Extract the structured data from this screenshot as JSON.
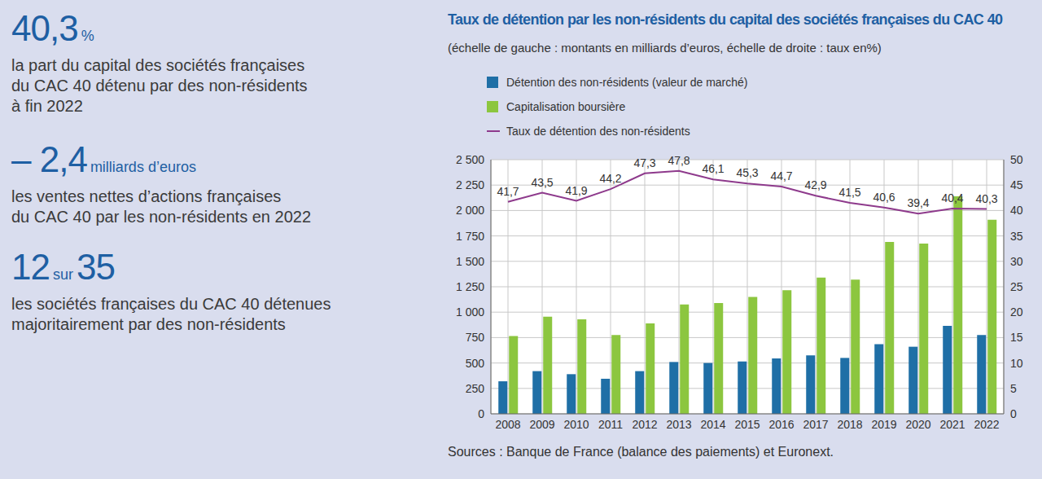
{
  "key_figures": [
    {
      "value": "40,3",
      "unit": "%",
      "lines": [
        "la part du capital des sociétés françaises",
        "du CAC 40 détenu par des non-résidents",
        "à fin 2022"
      ]
    },
    {
      "value": "– 2,4",
      "unit": "milliards d’euros",
      "lines": [
        "les ventes nettes d’actions françaises",
        "du CAC 40 par les non-résidents en 2022"
      ]
    },
    {
      "value": "12",
      "unit": "sur",
      "value_2": "35",
      "lines": [
        "les sociétés françaises du CAC 40 détenues",
        "majoritairement par des non-résidents"
      ]
    }
  ],
  "chart_data": {
    "type": "bar",
    "title": "Taux de détention par les non-résidents du capital des sociétés françaises du CAC 40",
    "subtitle": "(échelle de gauche : montants en milliards d’euros, échelle de droite : taux en%)",
    "source": "Sources : Banque de France (balance des paiements) et Euronext.",
    "categories": [
      "2008",
      "2009",
      "2010",
      "2011",
      "2012",
      "2013",
      "2014",
      "2015",
      "2016",
      "2017",
      "2018",
      "2019",
      "2020",
      "2021",
      "2022"
    ],
    "series": [
      {
        "name": "Détention des non-résidents (valeur de marché)",
        "type": "bar",
        "color": "#1f6fa6",
        "values": [
          320,
          420,
          390,
          345,
          420,
          510,
          500,
          515,
          545,
          575,
          550,
          685,
          660,
          865,
          775
        ]
      },
      {
        "name": "Capitalisation boursière",
        "type": "bar",
        "color": "#8cc63f",
        "values": [
          765,
          955,
          930,
          775,
          890,
          1075,
          1090,
          1150,
          1215,
          1340,
          1320,
          1690,
          1675,
          2140,
          1910
        ]
      },
      {
        "name": "Taux de détention des non-résidents",
        "type": "line",
        "axis": "y2",
        "color": "#8e3a8c",
        "marker": "none",
        "line_style": "solid",
        "data_labels": true,
        "values": [
          41.7,
          43.5,
          41.9,
          44.2,
          47.3,
          47.8,
          46.1,
          45.3,
          44.7,
          42.9,
          41.5,
          40.6,
          39.4,
          40.4,
          40.3
        ],
        "value_labels": [
          "41,7",
          "43,5",
          "41,9",
          "44,2",
          "47,3",
          "47,8",
          "46,1",
          "45,3",
          "44,7",
          "42,9",
          "41,5",
          "40,6",
          "39,4",
          "40,4",
          "40,3"
        ]
      }
    ],
    "ylim": [
      0,
      2500
    ],
    "yticks": [
      0,
      250,
      500,
      750,
      {
        "value": 1000,
        "label": "1 000"
      },
      {
        "value": 1250,
        "label": "1 250"
      },
      {
        "value": 1500,
        "label": "1 500"
      },
      {
        "value": 1750,
        "label": "1 750"
      },
      {
        "value": 2000,
        "label": "2 000"
      },
      {
        "value": 2250,
        "label": "2 250"
      },
      {
        "value": 2500,
        "label": "2 500"
      }
    ],
    "y2lim": [
      0,
      50
    ],
    "y2ticks": [
      0,
      5,
      10,
      15,
      20,
      25,
      30,
      35,
      40,
      45,
      50
    ],
    "grid": true
  }
}
